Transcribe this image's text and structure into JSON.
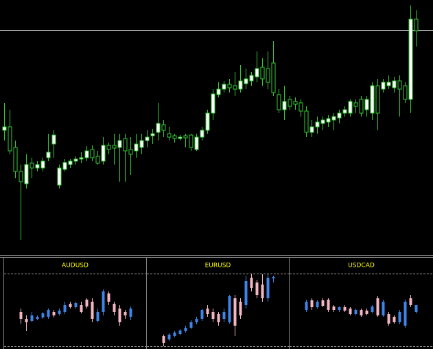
{
  "chart_data": [
    {
      "type": "candlestick",
      "open": [
        180,
        185,
        155,
        120,
        102,
        132,
        125,
        125,
        140,
        160,
        100,
        123,
        130,
        135,
        138,
        140,
        152,
        142,
        135,
        158,
        158,
        155,
        168,
        152,
        150,
        155,
        165,
        172,
        177,
        188,
        175,
        172,
        168,
        172,
        173,
        152,
        170,
        180,
        205,
        232,
        240,
        247,
        245,
        240,
        248,
        252,
        258,
        272,
        270,
        278,
        232,
        210,
        225,
        222,
        220,
        208,
        177,
        185,
        190,
        192,
        195,
        198,
        205,
        205,
        220,
        225,
        210,
        205,
        245,
        240,
        245,
        242,
        252,
        245,
        225,
        342
      ],
      "high": [
        220,
        210,
        165,
        130,
        145,
        140,
        135,
        140,
        175,
        180,
        130,
        138,
        138,
        142,
        148,
        157,
        158,
        150,
        170,
        162,
        175,
        175,
        175,
        170,
        175,
        175,
        180,
        182,
        220,
        195,
        185,
        175,
        173,
        175,
        175,
        175,
        185,
        210,
        240,
        250,
        252,
        255,
        265,
        275,
        270,
        265,
        295,
        285,
        295,
        310,
        240,
        245,
        230,
        228,
        225,
        215,
        195,
        200,
        200,
        202,
        205,
        210,
        215,
        225,
        225,
        230,
        230,
        250,
        255,
        255,
        260,
        258,
        260,
        250,
        362,
        355
      ],
      "low": [
        165,
        145,
        110,
        20,
        95,
        110,
        120,
        120,
        135,
        140,
        95,
        120,
        125,
        130,
        132,
        135,
        135,
        130,
        130,
        145,
        130,
        105,
        105,
        115,
        140,
        145,
        155,
        160,
        165,
        170,
        165,
        162,
        165,
        155,
        150,
        150,
        165,
        175,
        195,
        228,
        235,
        235,
        230,
        235,
        240,
        245,
        250,
        245,
        240,
        230,
        205,
        195,
        210,
        210,
        200,
        170,
        170,
        175,
        180,
        185,
        180,
        190,
        200,
        200,
        205,
        200,
        200,
        195,
        180,
        235,
        240,
        235,
        200,
        220,
        205,
        302
      ],
      "close": [
        185,
        150,
        120,
        105,
        130,
        125,
        130,
        135,
        148,
        173,
        125,
        133,
        135,
        138,
        140,
        150,
        140,
        132,
        158,
        152,
        154,
        165,
        150,
        145,
        160,
        165,
        170,
        175,
        190,
        180,
        170,
        168,
        170,
        169,
        155,
        170,
        180,
        205,
        233,
        240,
        247,
        242,
        240,
        252,
        255,
        260,
        270,
        255,
        250,
        235,
        210,
        222,
        215,
        218,
        208,
        177,
        185,
        192,
        195,
        197,
        200,
        205,
        210,
        222,
        215,
        205,
        225,
        245,
        205,
        250,
        250,
        252,
        240,
        225,
        342,
        325
      ],
      "ylim": [
        0,
        370
      ],
      "hline": 326,
      "hline_color": "#a0a0a0",
      "up_color": "#ffffff",
      "down_color": "#000000",
      "wick_color": "#33cc33"
    },
    {
      "type": "candlestick",
      "title": "AUDUSD",
      "open": [
        50,
        40,
        37,
        40,
        42,
        43,
        50,
        47,
        50,
        62,
        57,
        60,
        68,
        65,
        37,
        50,
        77,
        62,
        55,
        50,
        43
      ],
      "high": [
        55,
        45,
        50,
        45,
        50,
        55,
        53,
        55,
        65,
        65,
        65,
        65,
        70,
        70,
        55,
        83,
        80,
        65,
        60,
        53,
        58
      ],
      "low": [
        33,
        22,
        35,
        38,
        40,
        40,
        42,
        45,
        47,
        55,
        55,
        48,
        55,
        35,
        35,
        45,
        60,
        45,
        30,
        40,
        38
      ],
      "close": [
        40,
        35,
        45,
        43,
        48,
        53,
        45,
        52,
        60,
        57,
        63,
        50,
        58,
        40,
        50,
        80,
        65,
        50,
        35,
        45,
        55
      ],
      "ylim": [
        0,
        106
      ],
      "levels": [
        0,
        106
      ],
      "up_color": "#3d85e8",
      "down_color": "#f4b6c2",
      "title_color": "#ffff00"
    },
    {
      "type": "candlestick",
      "title": "EURUSD",
      "open": [
        15,
        10,
        15,
        18,
        22,
        27,
        35,
        40,
        55,
        50,
        47,
        40,
        35,
        70,
        65,
        60,
        100,
        93,
        90,
        70,
        99
      ],
      "high": [
        17,
        19,
        22,
        25,
        30,
        38,
        43,
        55,
        60,
        55,
        50,
        55,
        75,
        75,
        70,
        103,
        105,
        97,
        105,
        105,
        103
      ],
      "low": [
        0,
        8,
        13,
        16,
        20,
        25,
        32,
        37,
        43,
        35,
        30,
        35,
        33,
        15,
        40,
        55,
        80,
        70,
        65,
        65,
        93
      ],
      "close": [
        5,
        17,
        20,
        23,
        27,
        35,
        40,
        53,
        47,
        40,
        35,
        50,
        73,
        30,
        45,
        95,
        85,
        75,
        70,
        100,
        101
      ],
      "ylim": [
        0,
        106
      ],
      "levels": [
        0,
        106
      ],
      "up_color": "#3d85e8",
      "down_color": "#f4b6c2",
      "title_color": "#ffff00"
    },
    {
      "type": "candlestick",
      "title": "USDCAD",
      "open": [
        53,
        67,
        57,
        67,
        68,
        58,
        53,
        57,
        55,
        47,
        53,
        52,
        50,
        70,
        45,
        47,
        43,
        35,
        30,
        70,
        50
      ],
      "high": [
        68,
        70,
        67,
        70,
        70,
        60,
        58,
        60,
        57,
        55,
        55,
        55,
        60,
        73,
        68,
        50,
        45,
        53,
        68,
        75,
        60
      ],
      "low": [
        50,
        53,
        55,
        57,
        50,
        50,
        50,
        50,
        45,
        45,
        43,
        45,
        48,
        43,
        43,
        30,
        33,
        32,
        27,
        57,
        48
      ],
      "close": [
        65,
        57,
        65,
        59,
        53,
        53,
        57,
        52,
        47,
        53,
        45,
        47,
        58,
        45,
        65,
        33,
        35,
        50,
        65,
        60,
        60
      ],
      "ylim": [
        0,
        106
      ],
      "levels": [
        0,
        106
      ],
      "up_color": "#3d85e8",
      "down_color": "#f4b6c2",
      "title_color": "#ffff00"
    }
  ]
}
